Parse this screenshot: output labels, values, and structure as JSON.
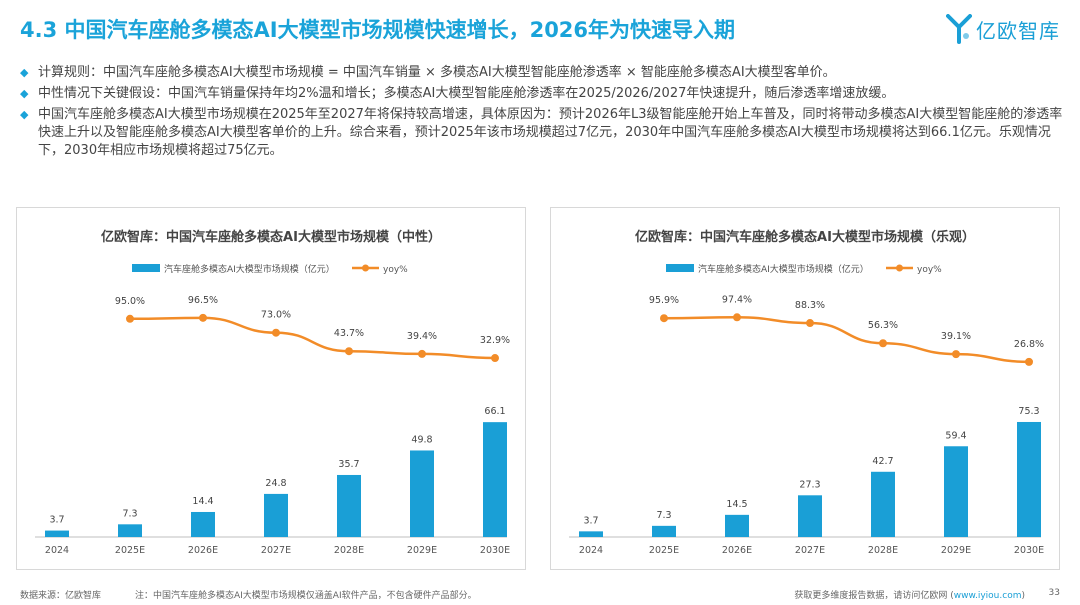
{
  "header": {
    "title": "4.3 中国汽车座舱多模态AI大模型市场规模快速增长，2026年为快速导入期"
  },
  "logo": {
    "text": "亿欧智库",
    "accent_color": "#1a9fd6"
  },
  "bullets": [
    "计算规则：中国汽车座舱多模态AI大模型市场规模 = 中国汽车销量 × 多模态AI大模型智能座舱渗透率 × 智能座舱多模态AI大模型客单价。",
    "中性情况下关键假设：中国汽车销量保持年均2%温和增长；多模态AI大模型智能座舱渗透率在2025/2026/2027年快速提升，随后渗透率增速放缓。",
    "中国汽车座舱多模态AI大模型市场规模在2025年至2027年将保持较高增速，具体原因为：预计2026年L3级智能座舱开始上车普及，同时将带动多模态AI大模型智能座舱的渗透率快速上升以及智能座舱多模态AI大模型客单价的上升。综合来看，预计2025年该市场规模超过7亿元，2030年中国汽车座舱多模态AI大模型市场规模将达到66.1亿元。乐观情况下，2030年相应市场规模将超过75亿元。"
  ],
  "colors": {
    "bar": "#1a9fd6",
    "line": "#f28c28",
    "title": "#1aa3d9"
  },
  "chart_data": [
    {
      "type": "bar",
      "title": "亿欧智库：中国汽车座舱多模态AI大模型市场规模（中性）",
      "categories": [
        "2024",
        "2025E",
        "2026E",
        "2027E",
        "2028E",
        "2029E",
        "2030E"
      ],
      "series": [
        {
          "name": "汽车座舱多模态AI大模型市场规模（亿元）",
          "type": "bar",
          "values": [
            3.7,
            7.3,
            14.4,
            24.8,
            35.7,
            49.8,
            66.1
          ],
          "labels": [
            "3.7",
            "7.3",
            "14.4",
            "24.8",
            "35.7",
            "49.8",
            "66.1"
          ]
        },
        {
          "name": "yoy%",
          "type": "line",
          "values": [
            null,
            95.0,
            96.5,
            73.0,
            43.7,
            39.4,
            32.9
          ],
          "labels": [
            "",
            "95.0%",
            "96.5%",
            "73.0%",
            "43.7%",
            "39.4%",
            "32.9%"
          ]
        }
      ],
      "ylim": [
        0,
        80
      ],
      "y2lim": [
        -100,
        120
      ],
      "legend": "top"
    },
    {
      "type": "bar",
      "title": "亿欧智库：中国汽车座舱多模态AI大模型市场规模（乐观）",
      "categories": [
        "2024",
        "2025E",
        "2026E",
        "2027E",
        "2028E",
        "2029E",
        "2030E"
      ],
      "series": [
        {
          "name": "汽车座舱多模态AI大模型市场规模（亿元）",
          "type": "bar",
          "values": [
            3.7,
            7.3,
            14.5,
            27.3,
            42.7,
            59.4,
            75.3
          ],
          "labels": [
            "3.7",
            "7.3",
            "14.5",
            "27.3",
            "42.7",
            "59.4",
            "75.3"
          ]
        },
        {
          "name": "yoy%",
          "type": "line",
          "values": [
            null,
            95.9,
            97.4,
            88.3,
            56.3,
            39.1,
            26.8
          ],
          "labels": [
            "",
            "95.9%",
            "97.4%",
            "88.3%",
            "56.3%",
            "39.1%",
            "26.8%"
          ]
        }
      ],
      "ylim": [
        0,
        91
      ],
      "y2lim": [
        -100,
        120
      ],
      "legend": "top"
    }
  ],
  "footer": {
    "source": "数据来源：亿欧智库",
    "note": "注：中国汽车座舱多模态AI大模型市场规模仅涵盖AI软件产品，不包含硬件产品部分。",
    "cta_prefix": "获取更多维度报告数据，请访问亿欧网 (",
    "cta_link": "www.iyiou.com",
    "cta_suffix": ")",
    "page": "33"
  }
}
